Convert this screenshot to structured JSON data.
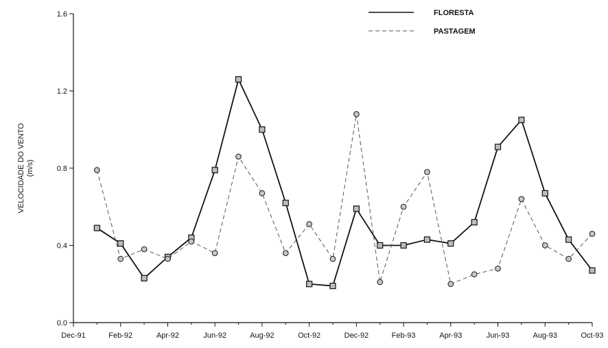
{
  "chart_data": {
    "type": "line",
    "title": "",
    "ylabel": "VELOCIDADE DO VENTO",
    "ylabel_unit": "(m/s)",
    "xlabel": "",
    "ylim": [
      0.0,
      1.6
    ],
    "yticks": [
      0.0,
      0.4,
      0.8,
      1.2,
      1.6
    ],
    "ytick_labels": [
      "0.0",
      "0.4",
      "0.8",
      "1.2",
      "1.6"
    ],
    "x_months": [
      "Dec-91",
      "Jan-92",
      "Feb-92",
      "Mar-92",
      "Apr-92",
      "May-92",
      "Jun-92",
      "Jul-92",
      "Aug-92",
      "Sep-92",
      "Oct-92",
      "Nov-92",
      "Dec-92",
      "Jan-93",
      "Feb-93",
      "Mar-93",
      "Apr-93",
      "May-93",
      "Jun-93",
      "Jul-93",
      "Aug-93",
      "Sep-93",
      "Oct-93"
    ],
    "xtick_labels": [
      "Dec-91",
      "Feb-92",
      "Apr-92",
      "Jun-92",
      "Aug-92",
      "Oct-92",
      "Dec-92",
      "Feb-93",
      "Apr-93",
      "Jun-93",
      "Aug-93",
      "Oct-93"
    ],
    "legend_position": "top-right",
    "grid": false,
    "series": [
      {
        "name": "FLORESTA",
        "style": "solid",
        "marker": "square",
        "color": "#111111",
        "x": [
          "Jan-92",
          "Feb-92",
          "Mar-92",
          "Apr-92",
          "May-92",
          "Jun-92",
          "Jul-92",
          "Aug-92",
          "Sep-92",
          "Oct-92",
          "Nov-92",
          "Dec-92",
          "Jan-93",
          "Feb-93",
          "Mar-93",
          "Apr-93",
          "May-93",
          "Jun-93",
          "Jul-93",
          "Aug-93",
          "Sep-93",
          "Oct-93"
        ],
        "values": [
          0.49,
          0.41,
          0.23,
          0.34,
          0.44,
          0.79,
          1.26,
          1.0,
          0.62,
          0.2,
          0.19,
          0.59,
          0.4,
          0.4,
          0.43,
          0.41,
          0.52,
          0.91,
          1.05,
          0.67,
          0.43,
          0.27
        ]
      },
      {
        "name": "PASTAGEM",
        "style": "dashed",
        "marker": "circle",
        "color": "#555555",
        "x": [
          "Jan-92",
          "Feb-92",
          "Mar-92",
          "Apr-92",
          "May-92",
          "Jun-92",
          "Jul-92",
          "Aug-92",
          "Sep-92",
          "Oct-92",
          "Nov-92",
          "Dec-92",
          "Jan-93",
          "Feb-93",
          "Mar-93",
          "Apr-93",
          "May-93",
          "Jun-93",
          "Jul-93",
          "Aug-93",
          "Sep-93",
          "Oct-93"
        ],
        "values": [
          0.79,
          0.33,
          0.38,
          0.33,
          0.42,
          0.36,
          0.86,
          0.67,
          0.36,
          0.51,
          0.33,
          1.08,
          0.21,
          0.6,
          0.78,
          0.2,
          0.25,
          0.28,
          0.64,
          0.4,
          0.33,
          0.46
        ]
      }
    ]
  }
}
